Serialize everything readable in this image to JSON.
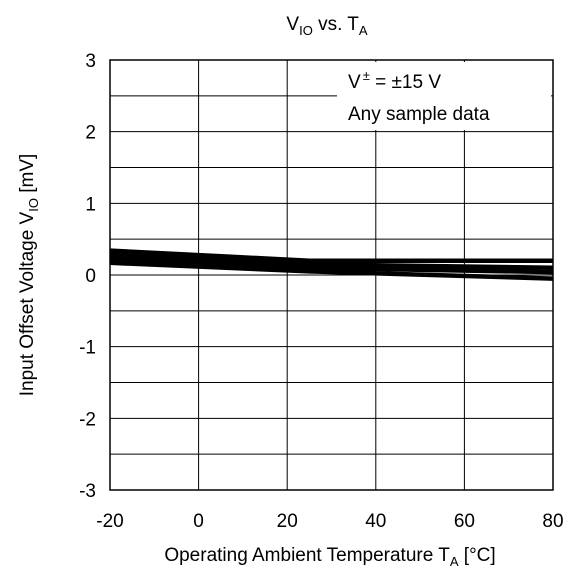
{
  "chart_data": {
    "type": "line",
    "title": {
      "main": "V",
      "sub": "IO",
      "rest": " vs. T",
      "sub2": "A"
    },
    "xlabel": {
      "main": "Operating Ambient Temperature T",
      "sub": "A",
      "rest": " [°C]"
    },
    "ylabel": {
      "main": "Input Offset Voltage V",
      "sub": "IO",
      "rest": " [mV]"
    },
    "xlim": [
      -20,
      80
    ],
    "ylim": [
      -3,
      3
    ],
    "x_ticks": [
      -20,
      0,
      20,
      40,
      60,
      80
    ],
    "y_ticks": [
      3,
      2,
      1,
      0,
      -1,
      -2,
      -3
    ],
    "x_tick_labels": [
      "-20",
      "0",
      "20",
      "40",
      "60",
      "80"
    ],
    "y_tick_labels": [
      "3",
      "2",
      "1",
      "0",
      "-1",
      "-2",
      "-3"
    ],
    "x_grid_step": 20,
    "y_grid_step": 0.5,
    "grid": true,
    "legend": null,
    "annotation": {
      "line1_pre": "V",
      "line1_sup": "±",
      "line1_post": " = ±15 V",
      "line2": "Any sample data",
      "position": "top-right"
    },
    "series": [
      {
        "color": "#000000",
        "x": [
          -20,
          25,
          80
        ],
        "y": [
          0.34,
          0.2,
          0.2
        ]
      },
      {
        "color": "#000000",
        "x": [
          -20,
          25,
          80
        ],
        "y": [
          0.28,
          0.15,
          0.1
        ]
      },
      {
        "color": "#000000",
        "x": [
          -20,
          25,
          80
        ],
        "y": [
          0.23,
          0.1,
          0.04
        ]
      },
      {
        "color": "#000000",
        "x": [
          -20,
          25,
          80
        ],
        "y": [
          0.17,
          0.05,
          -0.05
        ]
      }
    ]
  }
}
